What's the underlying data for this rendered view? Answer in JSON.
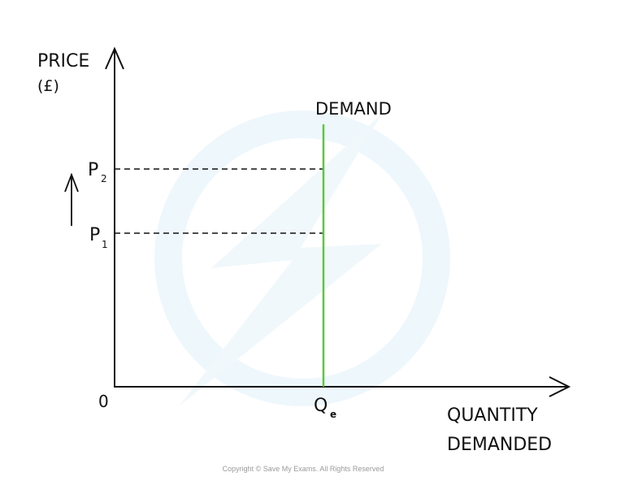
{
  "diagram": {
    "y_axis_label_line1": "PRICE",
    "y_axis_label_line2": "(£)",
    "x_axis_label_line1": "QUANTITY",
    "x_axis_label_line2": "DEMANDED",
    "origin_label": "0",
    "curve_label": "DEMAND",
    "curve_type": "perfectly inelastic (vertical)",
    "price_levels": [
      {
        "base": "P",
        "sub": "2"
      },
      {
        "base": "P",
        "sub": "1"
      }
    ],
    "quantity_label": {
      "base": "Q",
      "sub": "e"
    },
    "price_change_arrow": "up-arrow",
    "colors": {
      "demand": "#5cc83a",
      "axes": "#111111",
      "watermark": "#eaf5fb"
    }
  },
  "footer": {
    "copyright": "Copyright © Save My Exams. All Rights Reserved"
  }
}
